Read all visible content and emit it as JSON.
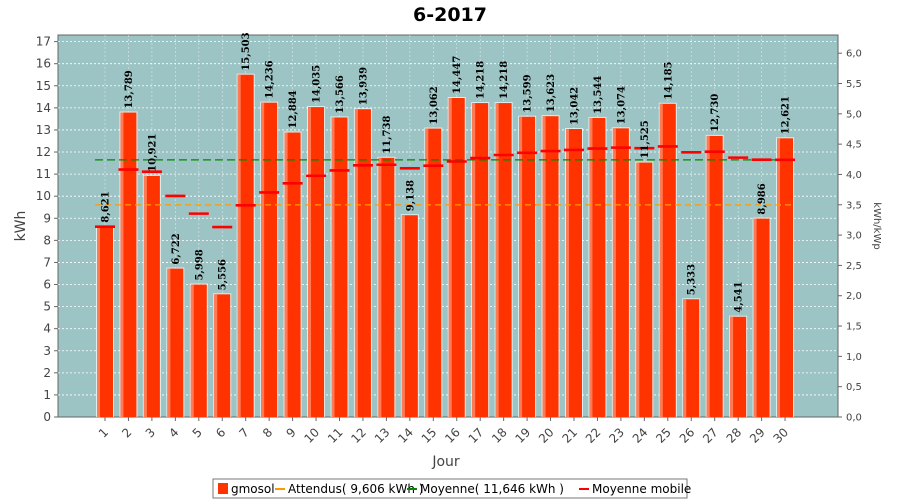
{
  "chart_data": {
    "type": "bar",
    "title": "6-2017",
    "xlabel": "Jour",
    "ylabel": "kWh",
    "y2label": "kWh/kWp",
    "ylim": [
      0,
      17.3
    ],
    "yticks": [
      0,
      1,
      2,
      3,
      4,
      5,
      6,
      7,
      8,
      9,
      10,
      11,
      12,
      13,
      14,
      15,
      16,
      17
    ],
    "y2lim": [
      0,
      6.3
    ],
    "y2ticks": [
      "0,0",
      "0,5",
      "1,0",
      "1,5",
      "2,0",
      "2,5",
      "3,0",
      "3,5",
      "4,0",
      "4,5",
      "5,0",
      "5,5",
      "6,0"
    ],
    "y2tick_values": [
      0,
      0.5,
      1,
      1.5,
      2,
      2.5,
      3,
      3.5,
      4,
      4.5,
      5,
      5.5,
      6
    ],
    "categories": [
      "1",
      "2",
      "3",
      "4",
      "5",
      "6",
      "7",
      "8",
      "9",
      "10",
      "11",
      "12",
      "13",
      "14",
      "15",
      "16",
      "17",
      "18",
      "19",
      "20",
      "21",
      "22",
      "23",
      "24",
      "25",
      "26",
      "27",
      "28",
      "29",
      "30"
    ],
    "series": [
      {
        "name": "gmosol",
        "values": [
          8.621,
          13.789,
          10.921,
          6.722,
          5.998,
          5.556,
          15.503,
          14.236,
          12.884,
          14.035,
          13.566,
          13.939,
          11.738,
          9.138,
          13.062,
          14.447,
          14.218,
          14.218,
          13.599,
          13.623,
          13.042,
          13.544,
          13.074,
          11.525,
          14.185,
          5.333,
          12.73,
          4.541,
          8.986,
          12.621
        ],
        "labels": [
          "8,621",
          "13,789",
          "10,921",
          "6,722",
          "5,998",
          "5,556",
          "15,503",
          "14,236",
          "12,884",
          "14,035",
          "13,566",
          "13,939",
          "11,738",
          "9,138",
          "13,062",
          "14,447",
          "14,218",
          "14,218",
          "13,599",
          "13,623",
          "13,042",
          "13,544",
          "13,074",
          "11,525",
          "14,185",
          "5,333",
          "12,730",
          "4,541",
          "8,986",
          "12,621"
        ],
        "color": "#ff3300"
      },
      {
        "name": "Attendus( 9,606 kWh )",
        "value": 9.606,
        "color": "#ff9900"
      },
      {
        "name": "Moyenne( 11,646 kWh )",
        "value": 11.646,
        "color": "#008800"
      },
      {
        "name": "Moyenne mobile",
        "values": [
          8.621,
          11.205,
          11.11,
          10.013,
          9.21,
          8.601,
          9.587,
          10.168,
          10.581,
          10.926,
          11.166,
          11.398,
          11.424,
          11.262,
          11.382,
          11.571,
          11.727,
          11.865,
          11.963,
          12.046,
          12.093,
          12.159,
          12.199,
          12.172,
          12.252,
          11.986,
          12.014,
          11.747,
          11.652,
          11.646
        ],
        "color": "#ff0000"
      }
    ],
    "plot_background": "#9cc4c4",
    "grid": true,
    "legend_position": "bottom"
  }
}
